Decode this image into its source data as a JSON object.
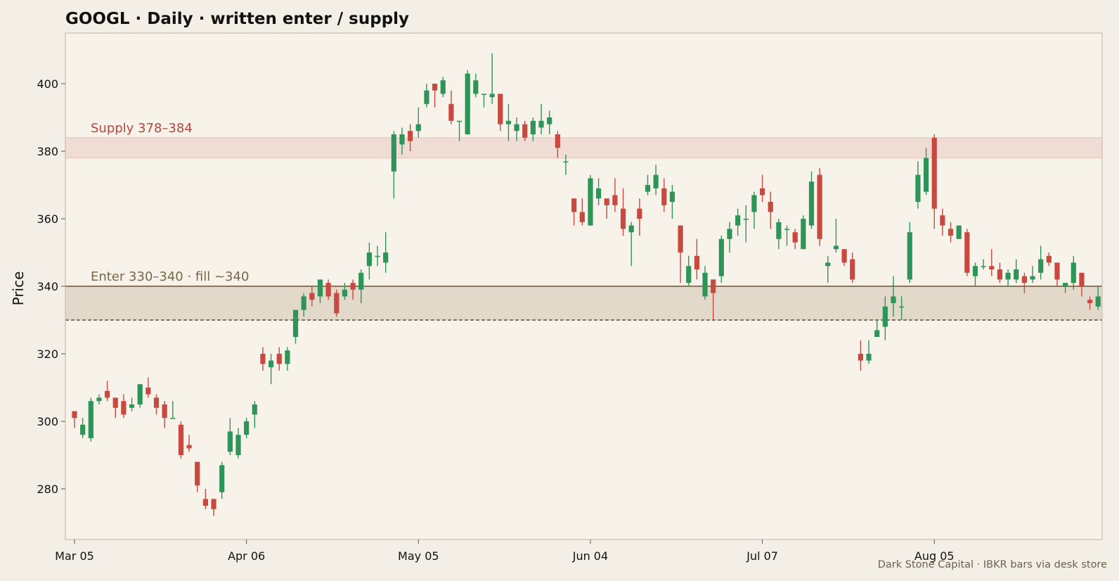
{
  "chart_data": {
    "type": "candlestick",
    "title": "GOOGL · Daily · written enter / supply",
    "ylabel": "Price",
    "xlabel": "",
    "ylim": [
      265,
      415
    ],
    "yticks": [
      280,
      300,
      320,
      340,
      360,
      380,
      400
    ],
    "xticks": [
      {
        "label": "Mar 05",
        "index": 0
      },
      {
        "label": "Apr 06",
        "index": 21
      },
      {
        "label": "May 05",
        "index": 42
      },
      {
        "label": "Jun 04",
        "index": 63
      },
      {
        "label": "Jul 07",
        "index": 84
      },
      {
        "label": "Aug 05",
        "index": 105
      }
    ],
    "zones": [
      {
        "label": "Supply 378–384",
        "low": 378,
        "high": 384,
        "color": "#efdcd4",
        "edge": "#e3c6b9",
        "text_color": "#b5473f"
      },
      {
        "label": "Enter 330–340 · fill ~340",
        "low": 330,
        "high": 340,
        "color": "#e2d9cb",
        "text_color": "#7a6748"
      }
    ],
    "fill_line": 340,
    "colors": {
      "up": "#2e9458",
      "down": "#c8493f",
      "background": "#f7f3ea",
      "frame": "#c9c2b5",
      "enter_line": "#8a7656"
    },
    "credit": "Dark Stone Capital · IBKR bars via desk store",
    "candles": [
      [
        303,
        301,
        298,
        303
      ],
      [
        296,
        299,
        295,
        301
      ],
      [
        295,
        306,
        294,
        307
      ],
      [
        306,
        307,
        305,
        308
      ],
      [
        309,
        307,
        306,
        312
      ],
      [
        307,
        304,
        301,
        307
      ],
      [
        306,
        302,
        301,
        308
      ],
      [
        304,
        305,
        303,
        307
      ],
      [
        305,
        311,
        304,
        311
      ],
      [
        310,
        308,
        307,
        313
      ],
      [
        307,
        304,
        302,
        308
      ],
      [
        305,
        301,
        298,
        306
      ],
      [
        301,
        301,
        301,
        306
      ],
      [
        299,
        290,
        289,
        300
      ],
      [
        293,
        292,
        291,
        296
      ],
      [
        288,
        281,
        279,
        288
      ],
      [
        277,
        275,
        274,
        280
      ],
      [
        277,
        274,
        272,
        277
      ],
      [
        279,
        287,
        277,
        288
      ],
      [
        291,
        297,
        290,
        301
      ],
      [
        290,
        296,
        289,
        298
      ],
      [
        296,
        300,
        295,
        301
      ],
      [
        302,
        305,
        298,
        306
      ],
      [
        320,
        317,
        315,
        322
      ],
      [
        316,
        318,
        311,
        320
      ],
      [
        320,
        317,
        315,
        322
      ],
      [
        317,
        321,
        315,
        322
      ],
      [
        325,
        333,
        323,
        333
      ],
      [
        333,
        337,
        331,
        338
      ],
      [
        338,
        336,
        334,
        340
      ],
      [
        337,
        342,
        335,
        342
      ],
      [
        341,
        337,
        336,
        342
      ],
      [
        338,
        332,
        331,
        339
      ],
      [
        337,
        339,
        336,
        341
      ],
      [
        341,
        339,
        336,
        342
      ],
      [
        339,
        344,
        335,
        345
      ],
      [
        346,
        350,
        342,
        353
      ],
      [
        349,
        349,
        346,
        352
      ],
      [
        347,
        350,
        344,
        356
      ],
      [
        374,
        385,
        366,
        386
      ],
      [
        382,
        385,
        379,
        387
      ],
      [
        386,
        383,
        380,
        388
      ],
      [
        386,
        388,
        384,
        393
      ],
      [
        394,
        398,
        393,
        400
      ],
      [
        400,
        398,
        393,
        400
      ],
      [
        397,
        401,
        396,
        402
      ],
      [
        394,
        389,
        388,
        398
      ],
      [
        389,
        389,
        383,
        389
      ],
      [
        385,
        403,
        385,
        404
      ],
      [
        397,
        401,
        396,
        403
      ],
      [
        397,
        397,
        393,
        397
      ],
      [
        396,
        397,
        394,
        409
      ],
      [
        397,
        388,
        386,
        397
      ],
      [
        388,
        389,
        383,
        394
      ],
      [
        386,
        388,
        383,
        390
      ],
      [
        388,
        384,
        383,
        389
      ],
      [
        385,
        389,
        383,
        390
      ],
      [
        387,
        389,
        385,
        394
      ],
      [
        388,
        390,
        385,
        392
      ],
      [
        385,
        381,
        378,
        386
      ],
      [
        377,
        377,
        373,
        379
      ],
      [
        366,
        362,
        358,
        366
      ],
      [
        362,
        359,
        358,
        366
      ],
      [
        358,
        372,
        358,
        373
      ],
      [
        366,
        369,
        364,
        372
      ],
      [
        366,
        364,
        360,
        366
      ],
      [
        367,
        364,
        362,
        372
      ],
      [
        363,
        357,
        355,
        369
      ],
      [
        356,
        358,
        346,
        359
      ],
      [
        363,
        360,
        355,
        366
      ],
      [
        368,
        370,
        367,
        373
      ],
      [
        369,
        373,
        367,
        376
      ],
      [
        369,
        364,
        362,
        372
      ],
      [
        365,
        368,
        360,
        370
      ],
      [
        358,
        350,
        341,
        358
      ],
      [
        341,
        346,
        340,
        349
      ],
      [
        349,
        345,
        342,
        354
      ],
      [
        337,
        344,
        336,
        346
      ],
      [
        342,
        338,
        330,
        342
      ],
      [
        343,
        354,
        341,
        355
      ],
      [
        354,
        357,
        350,
        359
      ],
      [
        358,
        361,
        355,
        363
      ],
      [
        360,
        360,
        353,
        364
      ],
      [
        362,
        367,
        357,
        368
      ],
      [
        369,
        367,
        365,
        373
      ],
      [
        365,
        362,
        357,
        368
      ],
      [
        354,
        359,
        351,
        360
      ],
      [
        357,
        357,
        352,
        358
      ],
      [
        356,
        353,
        351,
        357
      ],
      [
        351,
        360,
        351,
        361
      ],
      [
        358,
        371,
        357,
        374
      ],
      [
        373,
        354,
        352,
        375
      ],
      [
        346,
        347,
        341,
        349
      ],
      [
        351,
        352,
        350,
        360
      ],
      [
        351,
        347,
        346,
        351
      ],
      [
        348,
        342,
        341,
        350
      ],
      [
        320,
        318,
        315,
        324
      ],
      [
        318,
        320,
        317,
        324
      ],
      [
        325,
        327,
        325,
        330
      ],
      [
        328,
        334,
        324,
        337
      ],
      [
        335,
        337,
        331,
        343
      ],
      [
        334,
        334,
        330,
        337
      ],
      [
        342,
        356,
        341,
        359
      ],
      [
        365,
        373,
        363,
        377
      ],
      [
        368,
        378,
        367,
        381
      ],
      [
        384,
        363,
        357,
        385
      ],
      [
        361,
        358,
        355,
        363
      ],
      [
        357,
        355,
        353,
        359
      ],
      [
        354,
        358,
        354,
        358
      ],
      [
        356,
        344,
        343,
        357
      ],
      [
        343,
        346,
        340,
        347
      ],
      [
        346,
        346,
        345,
        348
      ],
      [
        346,
        345,
        343,
        351
      ],
      [
        345,
        342,
        341,
        347
      ],
      [
        342,
        344,
        340,
        345
      ],
      [
        342,
        345,
        341,
        348
      ],
      [
        343,
        341,
        338,
        344
      ],
      [
        342,
        343,
        341,
        346
      ],
      [
        344,
        348,
        342,
        352
      ],
      [
        349,
        347,
        346,
        350
      ],
      [
        347,
        342,
        340,
        347
      ],
      [
        340,
        341,
        338,
        341
      ],
      [
        341,
        347,
        339,
        349
      ],
      [
        344,
        340,
        337,
        344
      ],
      [
        336,
        335,
        333,
        337
      ],
      [
        334,
        337,
        333,
        340
      ]
    ]
  }
}
